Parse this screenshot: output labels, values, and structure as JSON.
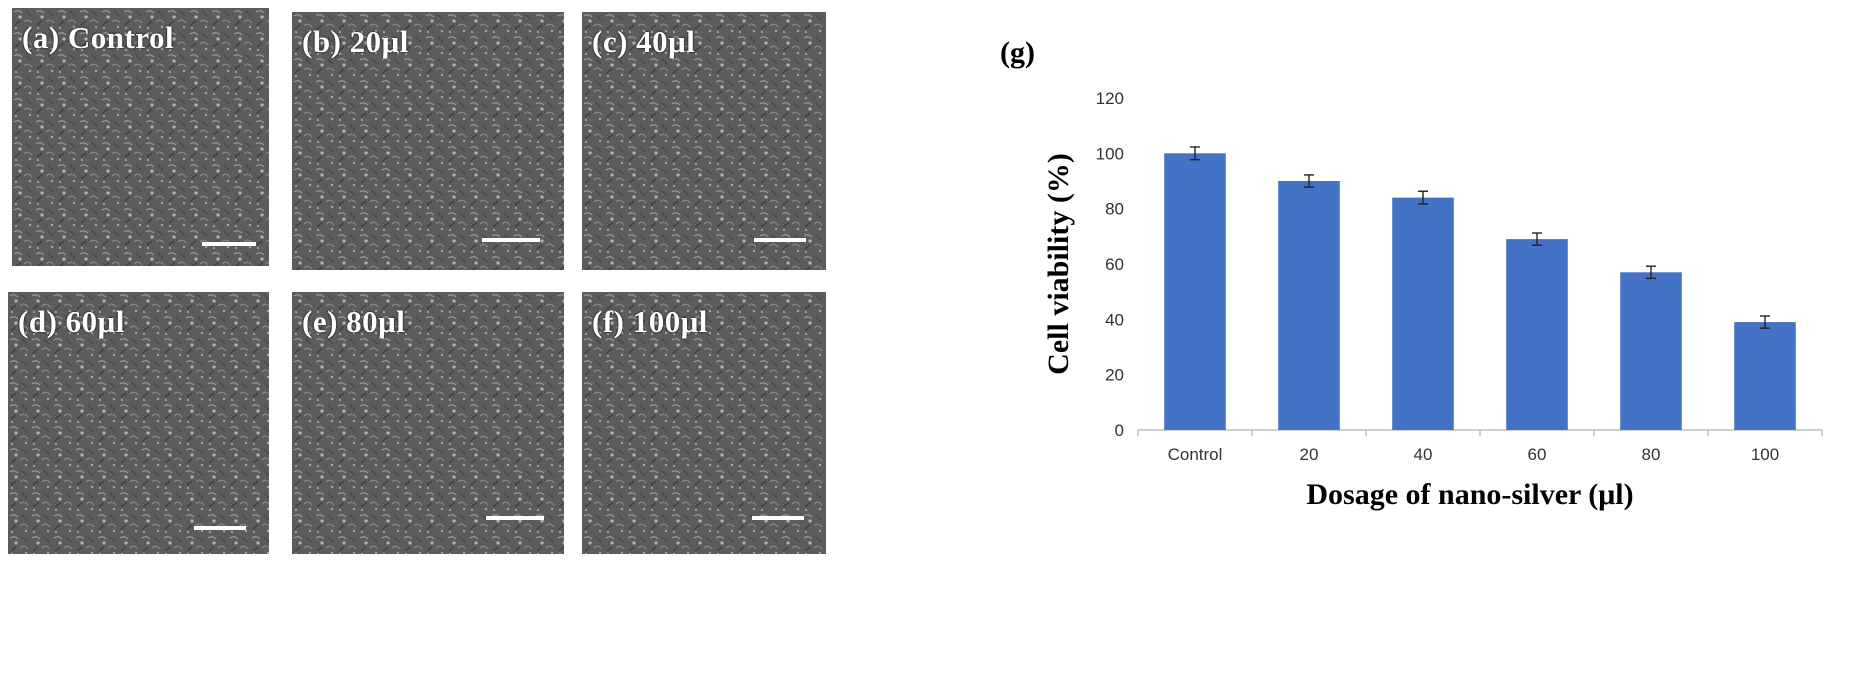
{
  "panels": [
    {
      "label": "(a) Control"
    },
    {
      "label": "(b) 20μl"
    },
    {
      "label": "(c) 40μl"
    },
    {
      "label": "(d) 60μl"
    },
    {
      "label": "(e) 80μl"
    },
    {
      "label": "(f) 100μl"
    }
  ],
  "chart_label": "(g)",
  "colors": {
    "bar": "#4472c4",
    "axis": "#bfbfbf",
    "micrograph": "#5d5d5d"
  },
  "chart_data": {
    "type": "bar",
    "categories": [
      "Control",
      "20",
      "40",
      "60",
      "80",
      "100"
    ],
    "values": [
      100,
      90,
      84,
      69,
      57,
      39
    ],
    "errors": [
      2.3,
      2.2,
      2.3,
      2.2,
      2.2,
      2.2
    ],
    "title": "",
    "xlabel": "Dosage of nano-silver (μl)",
    "ylabel": "Cell viability (%)",
    "ylim": [
      0,
      120
    ],
    "yticks": [
      0,
      20,
      40,
      60,
      80,
      100,
      120
    ],
    "grid": false,
    "legend": "none"
  }
}
